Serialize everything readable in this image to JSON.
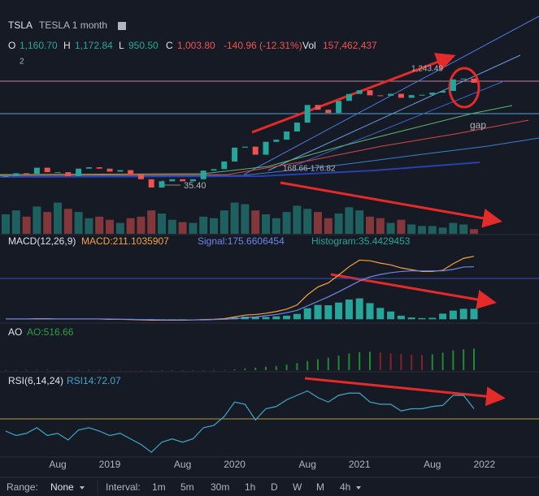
{
  "header": {
    "symbol": "TSLA",
    "name": "TESLA 1 month",
    "count": "2",
    "open_label": "O",
    "open": "1,160.70",
    "high_label": "H",
    "high": "1,172.84",
    "low_label": "L",
    "low": "950.50",
    "close_label": "C",
    "close": "1,003.80",
    "change": "-140.96 (-12.31%)",
    "vol_label": "Vol",
    "vol": "157,462,437"
  },
  "annotations": {
    "high": "1,243.49",
    "range": "168.66-176.82",
    "low": "35.40",
    "gap": "gap"
  },
  "indicators": {
    "macd_title": "MACD(12,26,9)",
    "macd": "MACD:211.1035907",
    "signal": "Signal:175.6606454",
    "histogram": "Histogram:35.4429453",
    "ao_title": "AO",
    "ao": "AO:516.66",
    "rsi_title": "RSI(6,14,24)",
    "rsi": "RSI14:72.07"
  },
  "toolbar": {
    "range_label": "Range:",
    "range": "None",
    "interval_label": "Interval:",
    "intervals": [
      "1m",
      "5m",
      "30m",
      "1h",
      "D",
      "W",
      "M",
      "4h"
    ]
  },
  "chart_data": {
    "type": "candlestick",
    "log_scale": true,
    "up_color": "#26a69a",
    "down_color": "#ef5350",
    "categories": [
      null,
      null,
      null,
      null,
      null,
      "Aug",
      null,
      null,
      null,
      null,
      "2019",
      null,
      null,
      null,
      null,
      null,
      null,
      "Aug",
      null,
      null,
      null,
      null,
      "2020",
      null,
      null,
      null,
      null,
      null,
      null,
      "Aug",
      null,
      null,
      null,
      null,
      "2021",
      null,
      null,
      null,
      null,
      null,
      null,
      "Aug",
      null,
      null,
      null,
      null,
      "2022"
    ],
    "ylim": [
      20,
      2000
    ],
    "close": [
      53,
      58,
      57,
      69,
      60,
      60,
      53,
      67,
      70,
      67,
      61,
      64,
      56,
      48,
      37,
      45,
      48,
      45,
      48,
      63,
      66,
      84,
      130,
      134,
      104,
      156,
      167,
      216,
      286,
      498,
      429,
      388,
      567,
      706,
      793,
      676,
      668,
      709,
      625,
      680,
      688,
      735,
      776,
      1114,
      1145,
      1004,
      null
    ],
    "volume_ylim": [
      0,
      50
    ],
    "volume": [
      25,
      30,
      22,
      35,
      28,
      40,
      32,
      28,
      20,
      22,
      18,
      14,
      20,
      22,
      30,
      26,
      18,
      15,
      14,
      22,
      20,
      30,
      40,
      38,
      30,
      25,
      20,
      28,
      36,
      32,
      28,
      20,
      26,
      34,
      30,
      22,
      20,
      14,
      18,
      12,
      10,
      10,
      8,
      14,
      12,
      6,
      null
    ],
    "macd_ylim": [
      -10,
      240
    ],
    "macd": [
      1,
      1,
      1,
      2,
      2,
      1,
      1,
      1,
      1,
      1,
      0,
      0,
      -1,
      -2,
      -3,
      -3,
      -3,
      -3,
      -2,
      -1,
      0,
      2,
      8,
      14,
      16,
      20,
      26,
      34,
      48,
      82,
      108,
      122,
      148,
      176,
      198,
      196,
      188,
      182,
      172,
      166,
      160,
      160,
      164,
      186,
      204,
      211,
      null
    ],
    "signal": [
      1,
      1,
      1,
      1,
      1,
      1,
      1,
      1,
      1,
      1,
      1,
      0,
      0,
      -1,
      -1,
      -2,
      -2,
      -2,
      -2,
      -2,
      -1,
      0,
      2,
      5,
      8,
      12,
      16,
      22,
      30,
      45,
      60,
      75,
      92,
      110,
      128,
      142,
      150,
      156,
      160,
      162,
      162,
      162,
      162,
      167,
      175,
      176,
      null
    ],
    "histogram": [
      0,
      0,
      0,
      1,
      1,
      0,
      0,
      0,
      0,
      0,
      -1,
      0,
      -1,
      -1,
      -2,
      -1,
      -1,
      -1,
      0,
      1,
      1,
      2,
      6,
      9,
      8,
      8,
      10,
      12,
      18,
      37,
      48,
      47,
      56,
      66,
      70,
      54,
      38,
      26,
      12,
      6,
      4,
      5,
      19,
      29,
      35,
      35,
      null
    ],
    "ao_ylim": [
      -20,
      700
    ],
    "ao": [
      5,
      6,
      6,
      8,
      8,
      6,
      4,
      5,
      6,
      6,
      4,
      2,
      -2,
      -6,
      -10,
      -10,
      -8,
      -8,
      -6,
      -2,
      2,
      6,
      20,
      40,
      60,
      80,
      100,
      130,
      170,
      220,
      260,
      300,
      350,
      400,
      430,
      440,
      420,
      400,
      390,
      370,
      360,
      380,
      420,
      470,
      500,
      517,
      null
    ],
    "rsi_ylim": [
      20,
      100
    ],
    "rsi": [
      52,
      48,
      50,
      55,
      48,
      50,
      44,
      53,
      55,
      52,
      48,
      50,
      45,
      40,
      33,
      42,
      45,
      42,
      45,
      55,
      57,
      65,
      78,
      76,
      62,
      72,
      74,
      80,
      84,
      88,
      82,
      78,
      84,
      86,
      86,
      78,
      76,
      76,
      70,
      72,
      72,
      74,
      75,
      84,
      84,
      72,
      null
    ]
  }
}
